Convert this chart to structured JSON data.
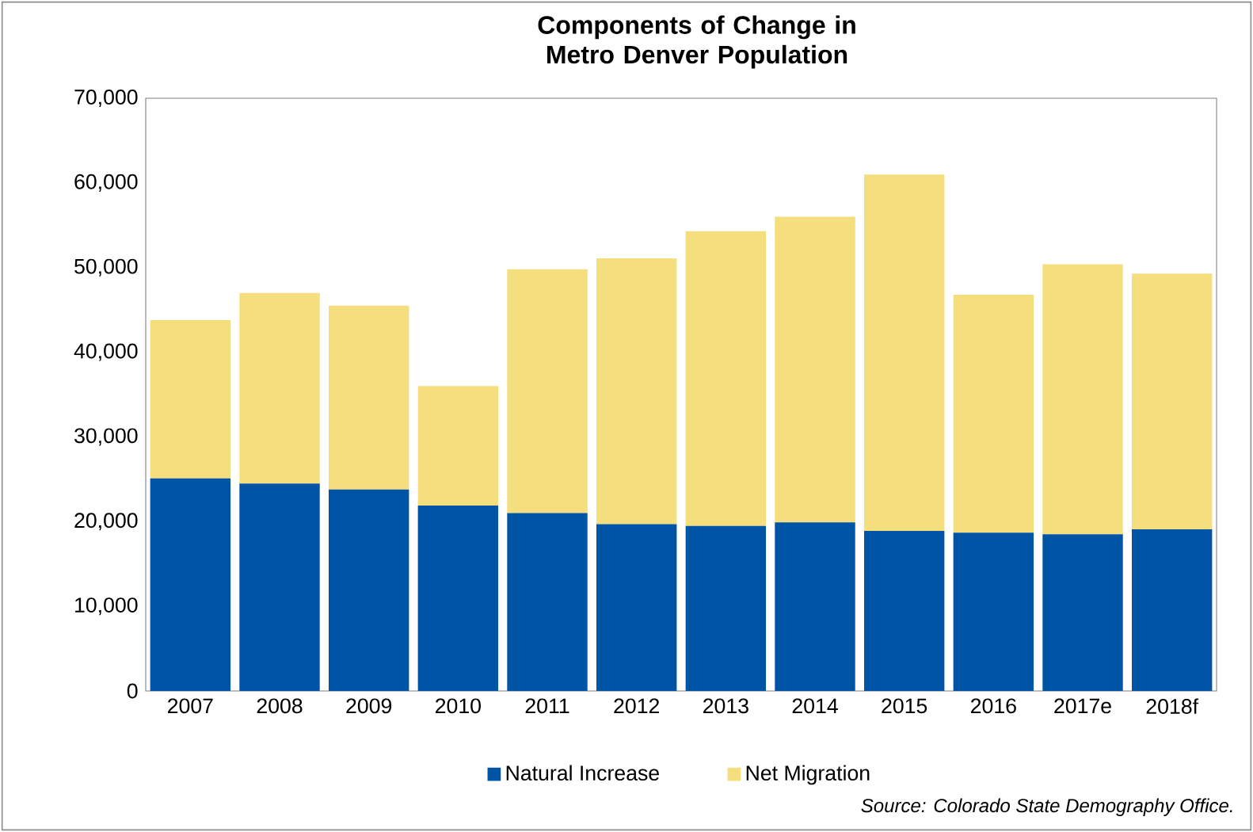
{
  "chart_data": {
    "type": "bar",
    "title": "Components of Change in Metro Denver Population",
    "categories": [
      "2007",
      "2008",
      "2009",
      "2010",
      "2011",
      "2012",
      "2013",
      "2014",
      "2015",
      "2016",
      "2017e",
      "2018f"
    ],
    "stacked": true,
    "series": [
      {
        "name": "Natural Increase",
        "color": "#0054a6",
        "values": [
          25100,
          24500,
          23800,
          21900,
          21000,
          19700,
          19500,
          19900,
          18900,
          18700,
          18500,
          19100
        ]
      },
      {
        "name": "Net Migration",
        "color": "#f5de7e",
        "values": [
          18700,
          22500,
          21700,
          14100,
          28800,
          31400,
          34800,
          36100,
          42100,
          28100,
          31900,
          30200
        ]
      }
    ],
    "ylim": [
      0,
      70000
    ],
    "yticks": [
      0,
      {
        "value": 10000,
        "label": "10,000"
      },
      {
        "value": 20000,
        "label": "20,000"
      },
      {
        "value": 30000,
        "label": "30,000"
      },
      {
        "value": 40000,
        "label": "40,000"
      },
      {
        "value": 50000,
        "label": "50,000"
      },
      {
        "value": 60000,
        "label": "60,000"
      },
      {
        "value": 70000,
        "label": "70,000"
      }
    ],
    "grid": false,
    "legend": "bottom",
    "annotations": [
      "*Source: Colorado State Demography Office.*"
    ]
  }
}
